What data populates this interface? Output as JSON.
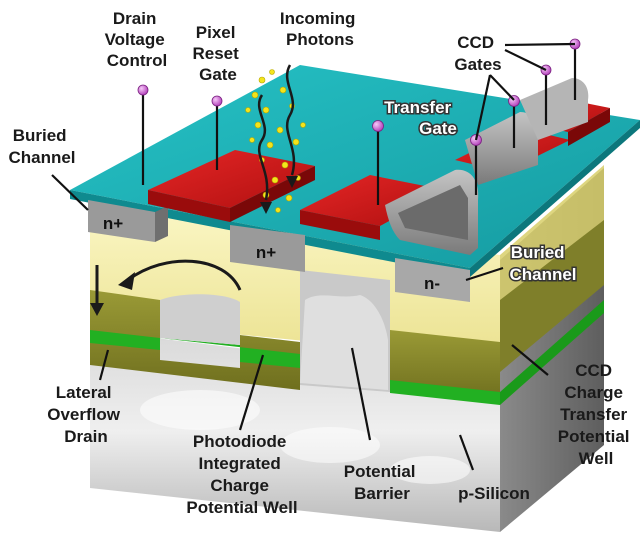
{
  "labels": {
    "drain_voltage_control": [
      "Drain",
      "Voltage",
      "Control"
    ],
    "pixel_reset_gate": [
      "Pixel",
      "Reset",
      "Gate"
    ],
    "incoming_photons": [
      "Incoming",
      "Photons"
    ],
    "ccd_gates": [
      "CCD",
      "Gates"
    ],
    "transfer_gate": [
      "Transfer",
      "Gate"
    ],
    "buried_channel_left": [
      "Buried",
      "Channel"
    ],
    "buried_channel_right": [
      "Buried",
      "Channel"
    ],
    "lateral_overflow_drain": [
      "Lateral",
      "Overflow",
      "Drain"
    ],
    "photodiode_well": [
      "Photodiode",
      "Integrated",
      "Charge",
      "Potential Well"
    ],
    "potential_barrier": [
      "Potential",
      "Barrier"
    ],
    "p_silicon": [
      "p-Silicon"
    ],
    "ccd_transfer_well": [
      "CCD",
      "Charge",
      "Transfer",
      "Potential",
      "Well"
    ]
  },
  "dopants": {
    "n_plus_left": "n+",
    "n_plus_center": "n+",
    "n_minus": "n-"
  },
  "colors": {
    "oxide": "#1fb3b8",
    "gate_red": "#d81b1b",
    "silicon_gray": "#9a9a9a",
    "depletion_yellow": "#f7f2a8",
    "well_olive": "#8a8a2a",
    "well_green": "#1ea81e",
    "photon_yellow": "#f4e41c",
    "pin_magenta": "#d05ad8"
  }
}
